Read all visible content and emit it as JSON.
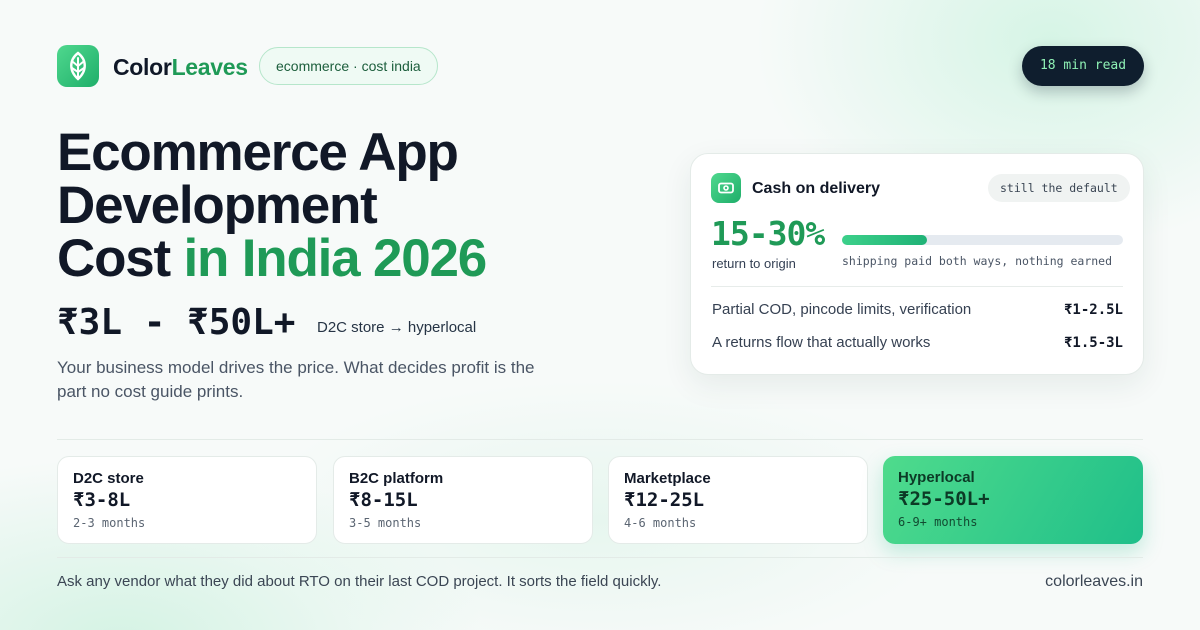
{
  "brand": {
    "name_start": "Color",
    "name_end": "Leaves"
  },
  "tag": "ecommerce · cost india",
  "read_time": "18 min read",
  "title": {
    "line1": "Ecommerce App",
    "line2": "Development",
    "line3": "Cost",
    "highlight": "in India 2026"
  },
  "price": {
    "range": "₹3L - ₹50L+",
    "scope": "D2C store → hyperlocal"
  },
  "description": "Your business model drives the price. What decides profit is the part no cost guide prints.",
  "card": {
    "title": "Cash on delivery",
    "badge": "still the default",
    "stat": "15-30%",
    "stat_label": "return to origin",
    "bar_caption": "shipping paid both ways, nothing earned",
    "rows": [
      {
        "label": "Partial COD, pincode limits, verification",
        "cost": "₹1-2.5L"
      },
      {
        "label": "A returns flow that actually works",
        "cost": "₹1.5-3L"
      }
    ]
  },
  "tiers": [
    {
      "name": "D2C store",
      "cost": "₹3-8L",
      "timeline": "2-3 months"
    },
    {
      "name": "B2C platform",
      "cost": "₹8-15L",
      "timeline": "3-5 months"
    },
    {
      "name": "Marketplace",
      "cost": "₹12-25L",
      "timeline": "4-6 months"
    },
    {
      "name": "Hyperlocal",
      "cost": "₹25-50L+",
      "timeline": "6-9+ months"
    }
  ],
  "footer": {
    "note": "Ask any vendor what they did about RTO on their last COD project. It sorts the field quickly.",
    "site": "colorleaves.in"
  }
}
